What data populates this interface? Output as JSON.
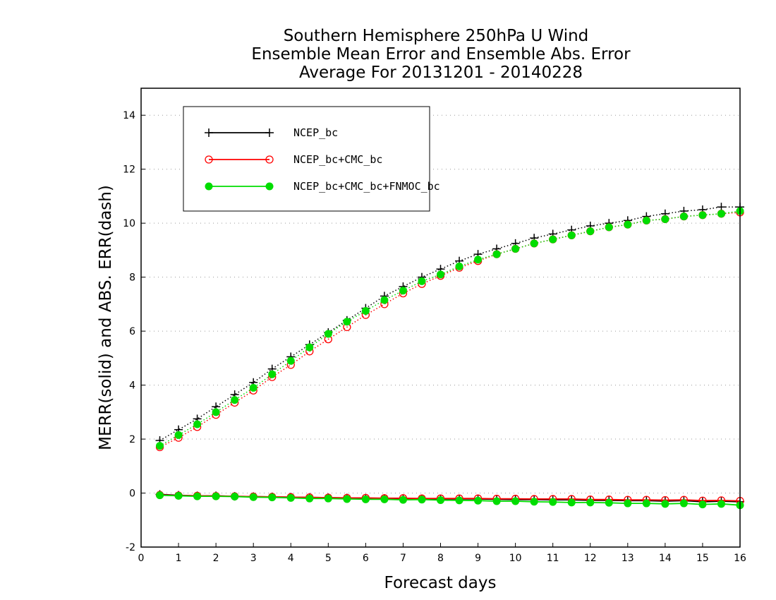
{
  "chart_data": {
    "type": "line",
    "title_lines": [
      "Southern Hemisphere 250hPa U Wind",
      "Ensemble Mean Error and Ensemble Abs. Error",
      "Average For 20131201 - 20140228"
    ],
    "xlabel": "Forecast days",
    "ylabel": "MERR(solid) and ABS. ERR(dash)",
    "xlim": [
      0,
      16
    ],
    "ylim": [
      -2,
      15
    ],
    "xticks": [
      0,
      1,
      2,
      3,
      4,
      5,
      6,
      7,
      8,
      9,
      10,
      11,
      12,
      13,
      14,
      15,
      16
    ],
    "xtick_labels": [
      "0",
      "1",
      "2",
      "3",
      "4",
      "5",
      "6",
      "7",
      "8",
      "9",
      "10",
      "11",
      "12",
      "13",
      "14",
      "15",
      "16"
    ],
    "yticks": [
      -2,
      0,
      2,
      4,
      6,
      8,
      10,
      12,
      14
    ],
    "ytick_labels": [
      "-2",
      "0",
      "2",
      "4",
      "6",
      "8",
      "10",
      "12",
      "14"
    ],
    "grid": "horizontal-dotted",
    "legend_position": "top-left",
    "x": [
      0.5,
      1,
      1.5,
      2,
      2.5,
      3,
      3.5,
      4,
      4.5,
      5,
      5.5,
      6,
      6.5,
      7,
      7.5,
      8,
      8.5,
      9,
      9.5,
      10,
      10.5,
      11,
      11.5,
      12,
      12.5,
      13,
      13.5,
      14,
      14.5,
      15,
      15.5,
      16
    ],
    "series": [
      {
        "name": "NCEP_bc",
        "color": "#000000",
        "marker": "plus",
        "abs_err": [
          1.95,
          2.35,
          2.75,
          3.2,
          3.65,
          4.1,
          4.6,
          5.05,
          5.5,
          5.95,
          6.4,
          6.85,
          7.3,
          7.65,
          8.0,
          8.3,
          8.6,
          8.85,
          9.05,
          9.25,
          9.45,
          9.6,
          9.75,
          9.9,
          10.0,
          10.1,
          10.25,
          10.35,
          10.45,
          10.5,
          10.6,
          10.6
        ],
        "mean_err": [
          -0.05,
          -0.08,
          -0.1,
          -0.1,
          -0.12,
          -0.13,
          -0.14,
          -0.15,
          -0.16,
          -0.17,
          -0.18,
          -0.19,
          -0.2,
          -0.2,
          -0.21,
          -0.22,
          -0.22,
          -0.22,
          -0.23,
          -0.24,
          -0.24,
          -0.25,
          -0.25,
          -0.27,
          -0.27,
          -0.28,
          -0.28,
          -0.3,
          -0.28,
          -0.32,
          -0.3,
          -0.32
        ]
      },
      {
        "name": "NCEP_bc+CMC_bc",
        "color": "#ff0000",
        "marker": "open-circle",
        "abs_err": [
          1.7,
          2.05,
          2.45,
          2.9,
          3.35,
          3.8,
          4.3,
          4.75,
          5.25,
          5.7,
          6.15,
          6.6,
          7.0,
          7.4,
          7.75,
          8.05,
          8.35,
          8.6,
          8.85,
          9.05,
          9.25,
          9.4,
          9.55,
          9.7,
          9.85,
          9.95,
          10.1,
          10.15,
          10.25,
          10.3,
          10.35,
          10.4
        ],
        "mean_err": [
          -0.07,
          -0.09,
          -0.1,
          -0.11,
          -0.12,
          -0.13,
          -0.14,
          -0.15,
          -0.16,
          -0.17,
          -0.18,
          -0.18,
          -0.19,
          -0.19,
          -0.2,
          -0.2,
          -0.2,
          -0.2,
          -0.21,
          -0.21,
          -0.22,
          -0.22,
          -0.22,
          -0.24,
          -0.24,
          -0.25,
          -0.25,
          -0.26,
          -0.25,
          -0.28,
          -0.27,
          -0.29
        ]
      },
      {
        "name": "NCEP_bc+CMC_bc+FNMOC_bc",
        "color": "#00dd00",
        "marker": "filled-circle",
        "abs_err": [
          1.75,
          2.15,
          2.55,
          3.0,
          3.45,
          3.9,
          4.4,
          4.9,
          5.4,
          5.9,
          6.35,
          6.75,
          7.15,
          7.5,
          7.85,
          8.1,
          8.4,
          8.65,
          8.85,
          9.05,
          9.25,
          9.4,
          9.55,
          9.7,
          9.85,
          9.95,
          10.1,
          10.15,
          10.25,
          10.3,
          10.35,
          10.45
        ],
        "mean_err": [
          -0.08,
          -0.1,
          -0.12,
          -0.12,
          -0.13,
          -0.15,
          -0.16,
          -0.18,
          -0.2,
          -0.2,
          -0.22,
          -0.23,
          -0.23,
          -0.25,
          -0.24,
          -0.26,
          -0.27,
          -0.28,
          -0.3,
          -0.3,
          -0.32,
          -0.33,
          -0.35,
          -0.35,
          -0.36,
          -0.38,
          -0.38,
          -0.4,
          -0.38,
          -0.42,
          -0.4,
          -0.45
        ]
      }
    ]
  }
}
